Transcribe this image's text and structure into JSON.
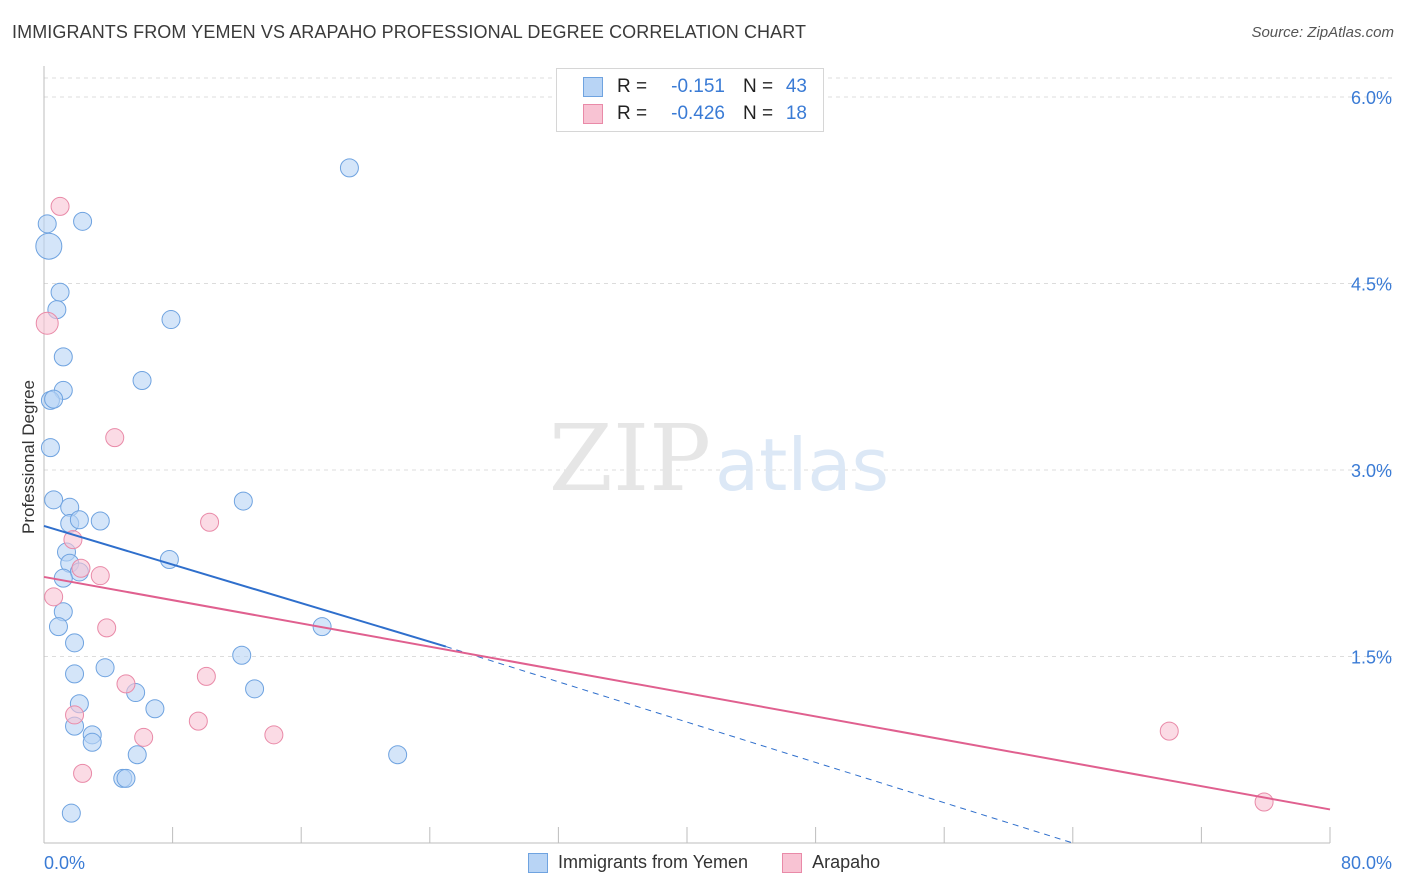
{
  "title": "IMMIGRANTS FROM YEMEN VS ARAPAHO PROFESSIONAL DEGREE CORRELATION CHART",
  "source": "Source: ZipAtlas.com",
  "watermark": {
    "zip": "ZIP",
    "atlas": "atlas"
  },
  "legend": {
    "rows": [
      {
        "r_label": "R =",
        "r_value": "-0.151",
        "n_label": "N =",
        "n_value": "43"
      },
      {
        "r_label": "R =",
        "r_value": "-0.426",
        "n_label": "N =",
        "n_value": "18"
      }
    ]
  },
  "colors": {
    "blue_fill": "#b8d4f5",
    "blue_stroke": "#6fa3e0",
    "blue_line": "#2f6fcc",
    "pink_fill": "#f8c3d3",
    "pink_stroke": "#e98aa8",
    "pink_line": "#e0608f",
    "axis_label": "#3a7bd5",
    "grid": "#dcdcdc"
  },
  "chart_data": {
    "type": "scatter",
    "title": "IMMIGRANTS FROM YEMEN VS ARAPAHO PROFESSIONAL DEGREE CORRELATION CHART",
    "xlabel": "",
    "ylabel": "Professional Degree",
    "xlim": [
      0,
      80
    ],
    "ylim": [
      0,
      6.2
    ],
    "x_tick_labels": [
      "0.0%",
      "80.0%"
    ],
    "y_ticks": [
      1.5,
      3.0,
      4.5,
      6.0
    ],
    "y_tick_labels": [
      "1.5%",
      "3.0%",
      "4.5%",
      "6.0%"
    ],
    "series": [
      {
        "name": "Immigrants from Yemen",
        "color": "blue",
        "points": [
          [
            0.2,
            4.98,
            18
          ],
          [
            0.3,
            4.8,
            26
          ],
          [
            1.0,
            4.43,
            18
          ],
          [
            0.8,
            4.29,
            18
          ],
          [
            1.2,
            3.91,
            18
          ],
          [
            1.2,
            3.64,
            18
          ],
          [
            0.4,
            3.56,
            18
          ],
          [
            0.6,
            3.57,
            18
          ],
          [
            0.4,
            3.18,
            18
          ],
          [
            0.6,
            2.76,
            18
          ],
          [
            1.6,
            2.7,
            18
          ],
          [
            1.6,
            2.57,
            18
          ],
          [
            2.2,
            2.6,
            18
          ],
          [
            3.5,
            2.59,
            18
          ],
          [
            1.4,
            2.34,
            18
          ],
          [
            1.6,
            2.25,
            18
          ],
          [
            2.2,
            2.18,
            18
          ],
          [
            1.2,
            2.13,
            18
          ],
          [
            1.2,
            1.86,
            18
          ],
          [
            0.9,
            1.74,
            18
          ],
          [
            1.9,
            1.61,
            18
          ],
          [
            1.9,
            1.36,
            18
          ],
          [
            3.8,
            1.41,
            18
          ],
          [
            2.2,
            1.12,
            18
          ],
          [
            1.9,
            0.94,
            18
          ],
          [
            3.0,
            0.87,
            18
          ],
          [
            3.0,
            0.81,
            18
          ],
          [
            4.9,
            0.52,
            18
          ],
          [
            5.1,
            0.52,
            18
          ],
          [
            5.8,
            0.71,
            18
          ],
          [
            5.7,
            1.21,
            18
          ],
          [
            6.9,
            1.08,
            18
          ],
          [
            1.7,
            0.24,
            18
          ],
          [
            2.4,
            5.0,
            18
          ],
          [
            7.9,
            4.21,
            18
          ],
          [
            6.1,
            3.72,
            18
          ],
          [
            7.8,
            2.28,
            18
          ],
          [
            12.4,
            2.75,
            18
          ],
          [
            12.3,
            1.51,
            18
          ],
          [
            13.1,
            1.24,
            18
          ],
          [
            17.3,
            1.74,
            18
          ],
          [
            22.0,
            0.71,
            18
          ],
          [
            19.0,
            5.43,
            18
          ]
        ]
      },
      {
        "name": "Arapaho",
        "color": "pink",
        "points": [
          [
            0.2,
            4.18,
            22
          ],
          [
            1.0,
            5.12,
            18
          ],
          [
            0.6,
            1.98,
            18
          ],
          [
            1.8,
            2.44,
            18
          ],
          [
            1.9,
            1.03,
            18
          ],
          [
            2.4,
            0.56,
            18
          ],
          [
            3.5,
            2.15,
            18
          ],
          [
            3.9,
            1.73,
            18
          ],
          [
            4.4,
            3.26,
            18
          ],
          [
            5.1,
            1.28,
            18
          ],
          [
            6.2,
            0.85,
            18
          ],
          [
            9.6,
            0.98,
            18
          ],
          [
            10.1,
            1.34,
            18
          ],
          [
            10.3,
            2.58,
            18
          ],
          [
            14.3,
            0.87,
            18
          ],
          [
            2.3,
            2.21,
            18
          ],
          [
            70.0,
            0.9,
            18
          ],
          [
            75.9,
            0.33,
            18
          ]
        ]
      }
    ],
    "trendlines": [
      {
        "series": "Immigrants from Yemen",
        "x_start": 0,
        "y_start": 2.55,
        "x_end": 25.0,
        "y_end": 1.58,
        "dashed_to_x": 64.0,
        "dashed_to_y": 0.0
      },
      {
        "series": "Arapaho",
        "x_start": 0,
        "y_start": 2.14,
        "x_end": 80.0,
        "y_end": 0.27
      }
    ]
  },
  "bottom_legend": [
    "Immigrants from Yemen",
    "Arapaho"
  ]
}
